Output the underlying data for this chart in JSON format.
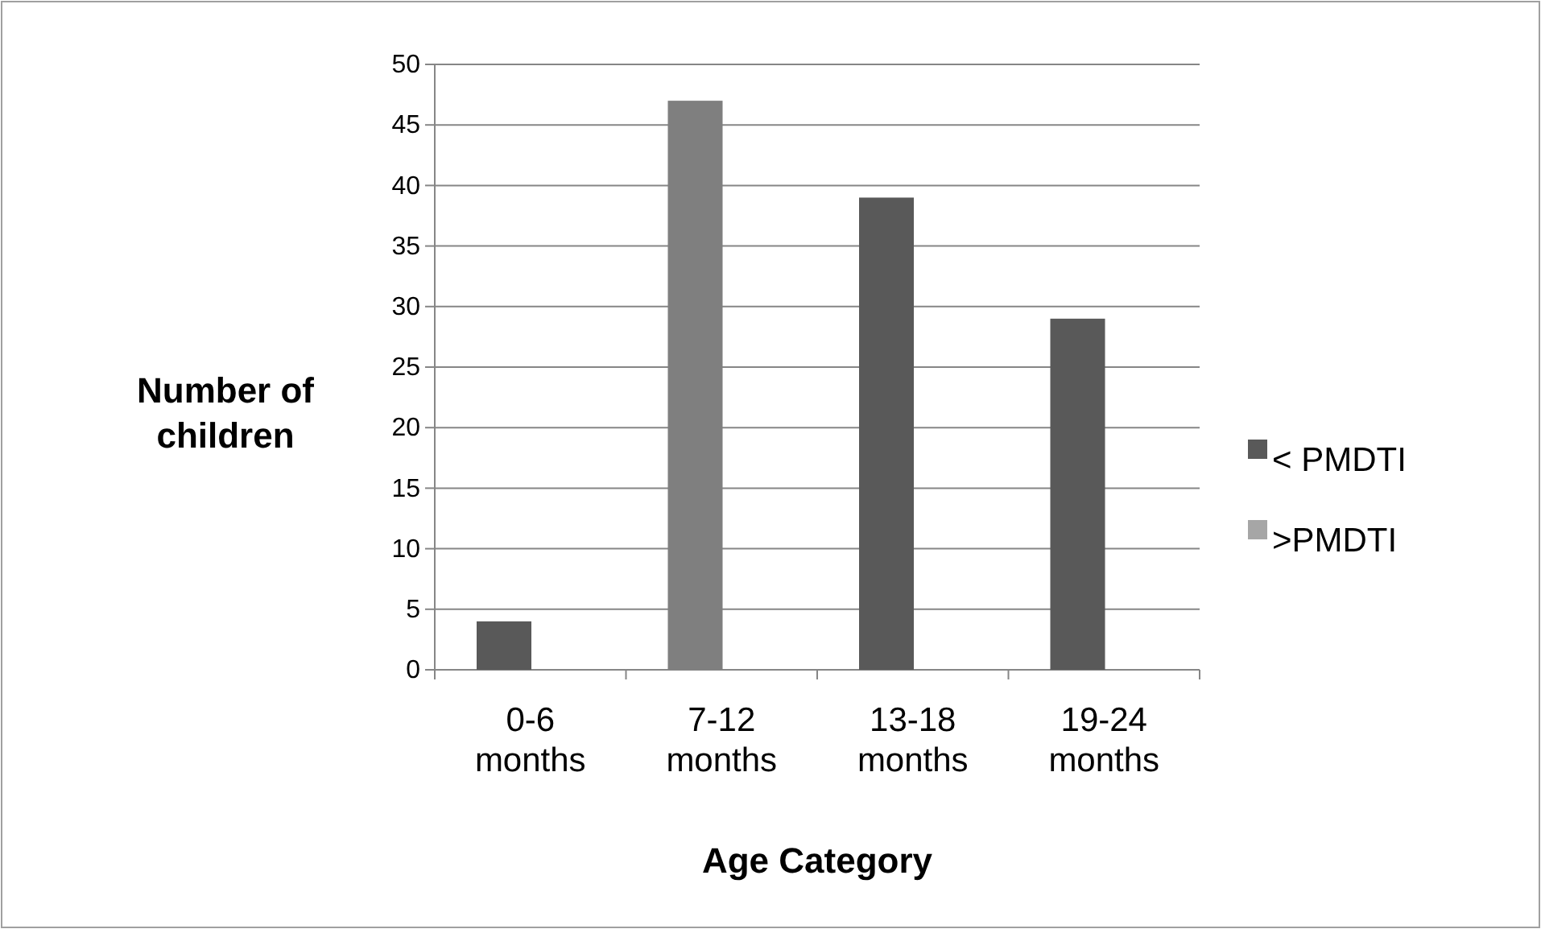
{
  "chart_data": {
    "type": "bar",
    "xlabel": "Age Category",
    "ylabel": "Number of children",
    "categories": [
      "0-6 months",
      "7-12 months",
      "13-18 months",
      "19-24 months"
    ],
    "series": [
      {
        "name": "< PMDTI",
        "color": "#595959",
        "colors": [
          "#595959",
          "#7f7f7f",
          "#595959",
          "#595959"
        ],
        "values": [
          4,
          47,
          39,
          29
        ]
      },
      {
        "name": ">PMDTI",
        "color": "#a6a6a6",
        "values": [
          null,
          null,
          null,
          null
        ]
      }
    ],
    "ylim": [
      0,
      50
    ],
    "yticks": [
      0,
      5,
      10,
      15,
      20,
      25,
      30,
      35,
      40,
      45,
      50
    ],
    "grid": "y",
    "legend": "right"
  }
}
